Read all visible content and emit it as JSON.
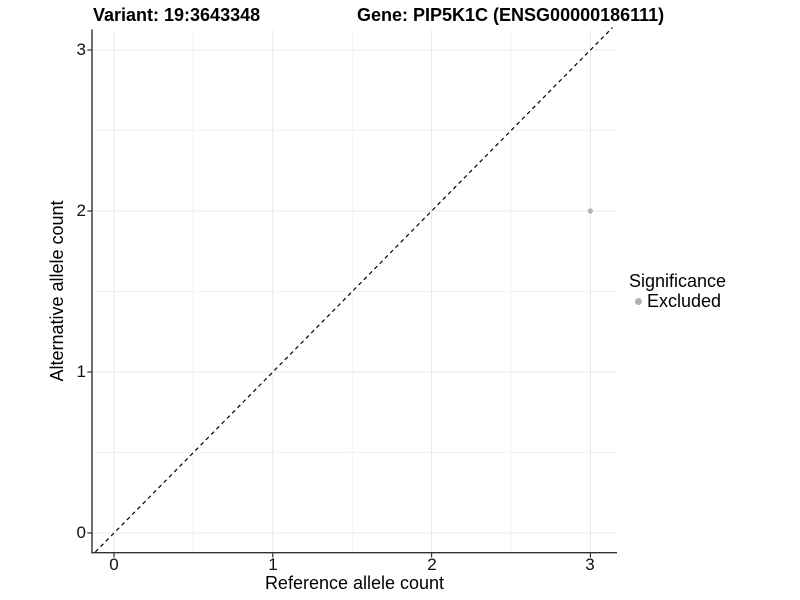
{
  "titles": {
    "variant": "Variant: 19:3643348",
    "gene": "Gene: PIP5K1C (ENSG00000186111)"
  },
  "axes": {
    "x": {
      "label": "Reference allele count",
      "ticks": [
        "0",
        "1",
        "2",
        "3"
      ]
    },
    "y": {
      "label": "Alternative allele count",
      "ticks": [
        "0",
        "1",
        "2",
        "3"
      ]
    }
  },
  "legend": {
    "title": "Significance",
    "items": [
      {
        "label": "Excluded",
        "color": "#b3b3b3"
      }
    ]
  },
  "colors": {
    "background": "#ffffff",
    "grid_major": "#e8e8e8",
    "grid_minor": "#f2f2f2",
    "axis_line": "#2f2f2f",
    "identity_line": "#000000",
    "excluded_point": "#b3b3b3"
  },
  "chart_data": {
    "type": "scatter",
    "title": "Variant: 19:3643348 | Gene: PIP5K1C (ENSG00000186111)",
    "xlabel": "Reference allele count",
    "ylabel": "Alternative allele count",
    "xlim": [
      -0.15,
      3.15
    ],
    "ylim": [
      -0.15,
      3.15
    ],
    "x_ticks": [
      0,
      1,
      2,
      3
    ],
    "y_ticks": [
      0,
      1,
      2,
      3
    ],
    "grid": "major at integers, minor at 0.5 steps, light gray on white",
    "legend_position": "right-center",
    "series": [
      {
        "name": "Excluded",
        "color": "#b3b3b3",
        "marker": "circle",
        "points": [
          [
            3,
            2
          ]
        ]
      }
    ],
    "annotations": [
      {
        "type": "abline",
        "slope": 1,
        "intercept": 0,
        "style": "dashed",
        "color": "#000000",
        "meaning": "identity line y = x"
      }
    ]
  }
}
